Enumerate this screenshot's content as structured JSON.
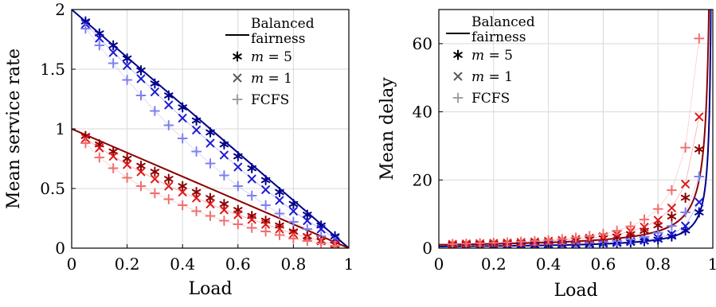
{
  "chart_data": [
    {
      "type": "scatter",
      "title": "",
      "xlabel": "Load",
      "ylabel": "Mean service rate",
      "xlim": [
        0,
        1
      ],
      "ylim": [
        0,
        2
      ],
      "xticks": [
        0,
        0.2,
        0.4,
        0.6,
        0.8,
        1
      ],
      "xtick_labels": [
        "0",
        "0.2",
        "0.4",
        "0.6",
        "0.8",
        "1"
      ],
      "yticks": [
        0,
        0.5,
        1,
        1.5,
        2
      ],
      "ytick_labels": [
        "0",
        "0.5",
        "1",
        "1.5",
        "2"
      ],
      "grid": true,
      "legend_position": "top-right",
      "legend": [
        {
          "kind": "line",
          "label_lines": [
            "Balanced",
            "fairness"
          ]
        },
        {
          "kind": "asterisk",
          "label": "m = 5",
          "label_var": "m",
          "label_rest": " = 5"
        },
        {
          "kind": "cross",
          "label": "m = 1",
          "label_var": "m",
          "label_rest": " = 1"
        },
        {
          "kind": "plus",
          "label": "FCFS"
        }
      ],
      "x": [
        0.05,
        0.1,
        0.15,
        0.2,
        0.25,
        0.3,
        0.35,
        0.4,
        0.45,
        0.5,
        0.55,
        0.6,
        0.65,
        0.7,
        0.75,
        0.8,
        0.85,
        0.9,
        0.95
      ],
      "series": [
        {
          "group": "blue",
          "kind": "line",
          "color": "#00008b",
          "x": [
            0,
            1
          ],
          "values": [
            2,
            0
          ]
        },
        {
          "group": "blue",
          "kind": "asterisk",
          "color": "#00008b",
          "values": [
            1.9,
            1.8,
            1.7,
            1.59,
            1.49,
            1.38,
            1.28,
            1.18,
            1.07,
            0.97,
            0.87,
            0.77,
            0.67,
            0.57,
            0.47,
            0.37,
            0.28,
            0.19,
            0.1
          ]
        },
        {
          "group": "blue",
          "kind": "cross",
          "color": "#1a1ad6",
          "values": [
            1.88,
            1.76,
            1.64,
            1.53,
            1.42,
            1.31,
            1.2,
            1.09,
            0.99,
            0.88,
            0.78,
            0.68,
            0.58,
            0.49,
            0.4,
            0.31,
            0.23,
            0.16,
            0.08
          ]
        },
        {
          "group": "blue",
          "kind": "plus",
          "color": "#8080f0",
          "values": [
            1.84,
            1.7,
            1.55,
            1.41,
            1.28,
            1.15,
            1.03,
            0.92,
            0.81,
            0.71,
            0.61,
            0.52,
            0.44,
            0.36,
            0.29,
            0.22,
            0.16,
            0.1,
            0.05
          ]
        },
        {
          "group": "red",
          "kind": "line",
          "color": "#8b0000",
          "x": [
            0,
            1
          ],
          "values": [
            1,
            0
          ]
        },
        {
          "group": "red",
          "kind": "asterisk",
          "color": "#8b0000",
          "values": [
            0.94,
            0.87,
            0.81,
            0.75,
            0.69,
            0.64,
            0.58,
            0.52,
            0.47,
            0.42,
            0.37,
            0.32,
            0.27,
            0.23,
            0.19,
            0.14,
            0.1,
            0.06,
            0.03
          ]
        },
        {
          "group": "red",
          "kind": "cross",
          "color": "#e01818",
          "values": [
            0.92,
            0.84,
            0.77,
            0.7,
            0.64,
            0.58,
            0.52,
            0.47,
            0.42,
            0.37,
            0.32,
            0.28,
            0.24,
            0.2,
            0.16,
            0.12,
            0.09,
            0.06,
            0.03
          ]
        },
        {
          "group": "red",
          "kind": "plus",
          "color": "#f07070",
          "values": [
            0.88,
            0.76,
            0.67,
            0.59,
            0.52,
            0.46,
            0.41,
            0.36,
            0.31,
            0.27,
            0.23,
            0.2,
            0.17,
            0.14,
            0.11,
            0.08,
            0.06,
            0.04,
            0.02
          ]
        }
      ]
    },
    {
      "type": "scatter",
      "title": "",
      "xlabel": "Load",
      "ylabel": "Mean delay",
      "xlim": [
        0,
        1
      ],
      "ylim": [
        0,
        70
      ],
      "xticks": [
        0,
        0.2,
        0.4,
        0.6,
        0.8,
        1
      ],
      "xtick_labels": [
        "0",
        "0.2",
        "0.4",
        "0.6",
        "0.8",
        "1"
      ],
      "yticks": [
        0,
        20,
        40,
        60
      ],
      "ytick_labels": [
        "0",
        "20",
        "40",
        "60"
      ],
      "grid": true,
      "legend_position": "top-right",
      "legend": [
        {
          "kind": "line",
          "label_lines": [
            "Balanced",
            "fairness"
          ]
        },
        {
          "kind": "asterisk",
          "label": "m = 5",
          "label_var": "m",
          "label_rest": " = 5"
        },
        {
          "kind": "cross",
          "label": "m = 1",
          "label_var": "m",
          "label_rest": " = 1"
        },
        {
          "kind": "plus",
          "label": "FCFS"
        }
      ],
      "x": [
        0.05,
        0.1,
        0.15,
        0.2,
        0.25,
        0.3,
        0.35,
        0.4,
        0.45,
        0.5,
        0.55,
        0.6,
        0.65,
        0.7,
        0.75,
        0.8,
        0.85,
        0.9,
        0.95
      ],
      "series": [
        {
          "group": "blue",
          "kind": "line",
          "color": "#00008b",
          "function": "0.5/(1-x)"
        },
        {
          "group": "blue",
          "kind": "asterisk",
          "color": "#00008b",
          "values": [
            0.5,
            0.55,
            0.6,
            0.65,
            0.7,
            0.75,
            0.8,
            0.85,
            0.95,
            1.0,
            1.15,
            1.3,
            1.45,
            1.7,
            2.0,
            2.5,
            3.4,
            5.2,
            10.5
          ]
        },
        {
          "group": "blue",
          "kind": "cross",
          "color": "#1a1ad6",
          "values": [
            0.55,
            0.6,
            0.65,
            0.7,
            0.75,
            0.8,
            0.85,
            0.9,
            1.0,
            1.1,
            1.2,
            1.4,
            1.6,
            1.9,
            2.3,
            3.0,
            4.1,
            6.5,
            13.5
          ]
        },
        {
          "group": "blue",
          "kind": "plus",
          "color": "#8080f0",
          "values": [
            0.6,
            0.65,
            0.7,
            0.75,
            0.8,
            0.9,
            1.0,
            1.1,
            1.2,
            1.35,
            1.55,
            1.8,
            2.1,
            2.6,
            3.3,
            4.5,
            6.5,
            10.5,
            21.0
          ]
        },
        {
          "group": "red",
          "kind": "line",
          "color": "#8b0000",
          "function": "1/(1-x)"
        },
        {
          "group": "red",
          "kind": "asterisk",
          "color": "#8b0000",
          "values": [
            1.1,
            1.2,
            1.25,
            1.35,
            1.45,
            1.55,
            1.7,
            1.85,
            2.0,
            2.25,
            2.55,
            2.9,
            3.4,
            4.1,
            5.1,
            6.7,
            9.3,
            14.8,
            29.0
          ]
        },
        {
          "group": "red",
          "kind": "cross",
          "color": "#e01818",
          "values": [
            1.15,
            1.25,
            1.35,
            1.45,
            1.55,
            1.7,
            1.85,
            2.05,
            2.3,
            2.6,
            2.95,
            3.4,
            4.0,
            4.9,
            6.2,
            8.2,
            11.8,
            18.8,
            38.5
          ]
        },
        {
          "group": "red",
          "kind": "plus",
          "color": "#f07070",
          "values": [
            1.2,
            1.3,
            1.45,
            1.55,
            1.7,
            1.9,
            2.1,
            2.35,
            2.65,
            3.05,
            3.55,
            4.2,
            5.1,
            6.4,
            8.4,
            11.5,
            17.0,
            29.5,
            61.5
          ]
        }
      ]
    }
  ]
}
